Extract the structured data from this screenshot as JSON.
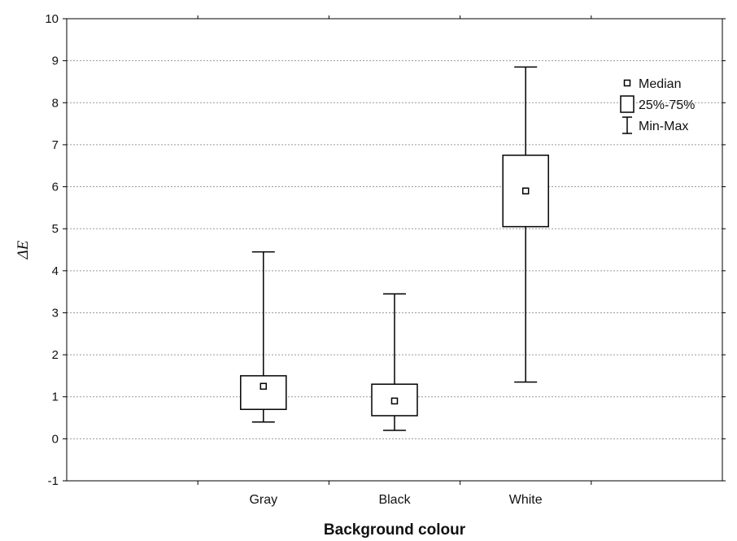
{
  "chart_data": {
    "type": "boxplot",
    "title": "",
    "xlabel": "Background colour",
    "ylabel": "ΔE",
    "ylim": [
      -1,
      10
    ],
    "yticks": [
      "-1",
      "0",
      "1",
      "2",
      "3",
      "4",
      "5",
      "6",
      "7",
      "8",
      "9",
      "10"
    ],
    "grid": true,
    "legend_position": "top-right",
    "categories": [
      "Gray",
      "Black",
      "White"
    ],
    "boxes": [
      {
        "category": "Gray",
        "min": 0.4,
        "q1": 0.7,
        "median": 1.25,
        "q3": 1.5,
        "max": 4.45
      },
      {
        "category": "Black",
        "min": 0.2,
        "q1": 0.55,
        "median": 0.9,
        "q3": 1.3,
        "max": 3.45
      },
      {
        "category": "White",
        "min": 1.35,
        "q1": 5.05,
        "median": 5.9,
        "q3": 6.75,
        "max": 8.85
      }
    ],
    "legend": [
      {
        "symbol": "median-square",
        "label": "Median"
      },
      {
        "symbol": "box",
        "label": "25%-75%"
      },
      {
        "symbol": "whisker",
        "label": "Min-Max"
      }
    ],
    "colors": {
      "axis": "#000000",
      "grid": "#999999",
      "box": "#000000"
    }
  }
}
